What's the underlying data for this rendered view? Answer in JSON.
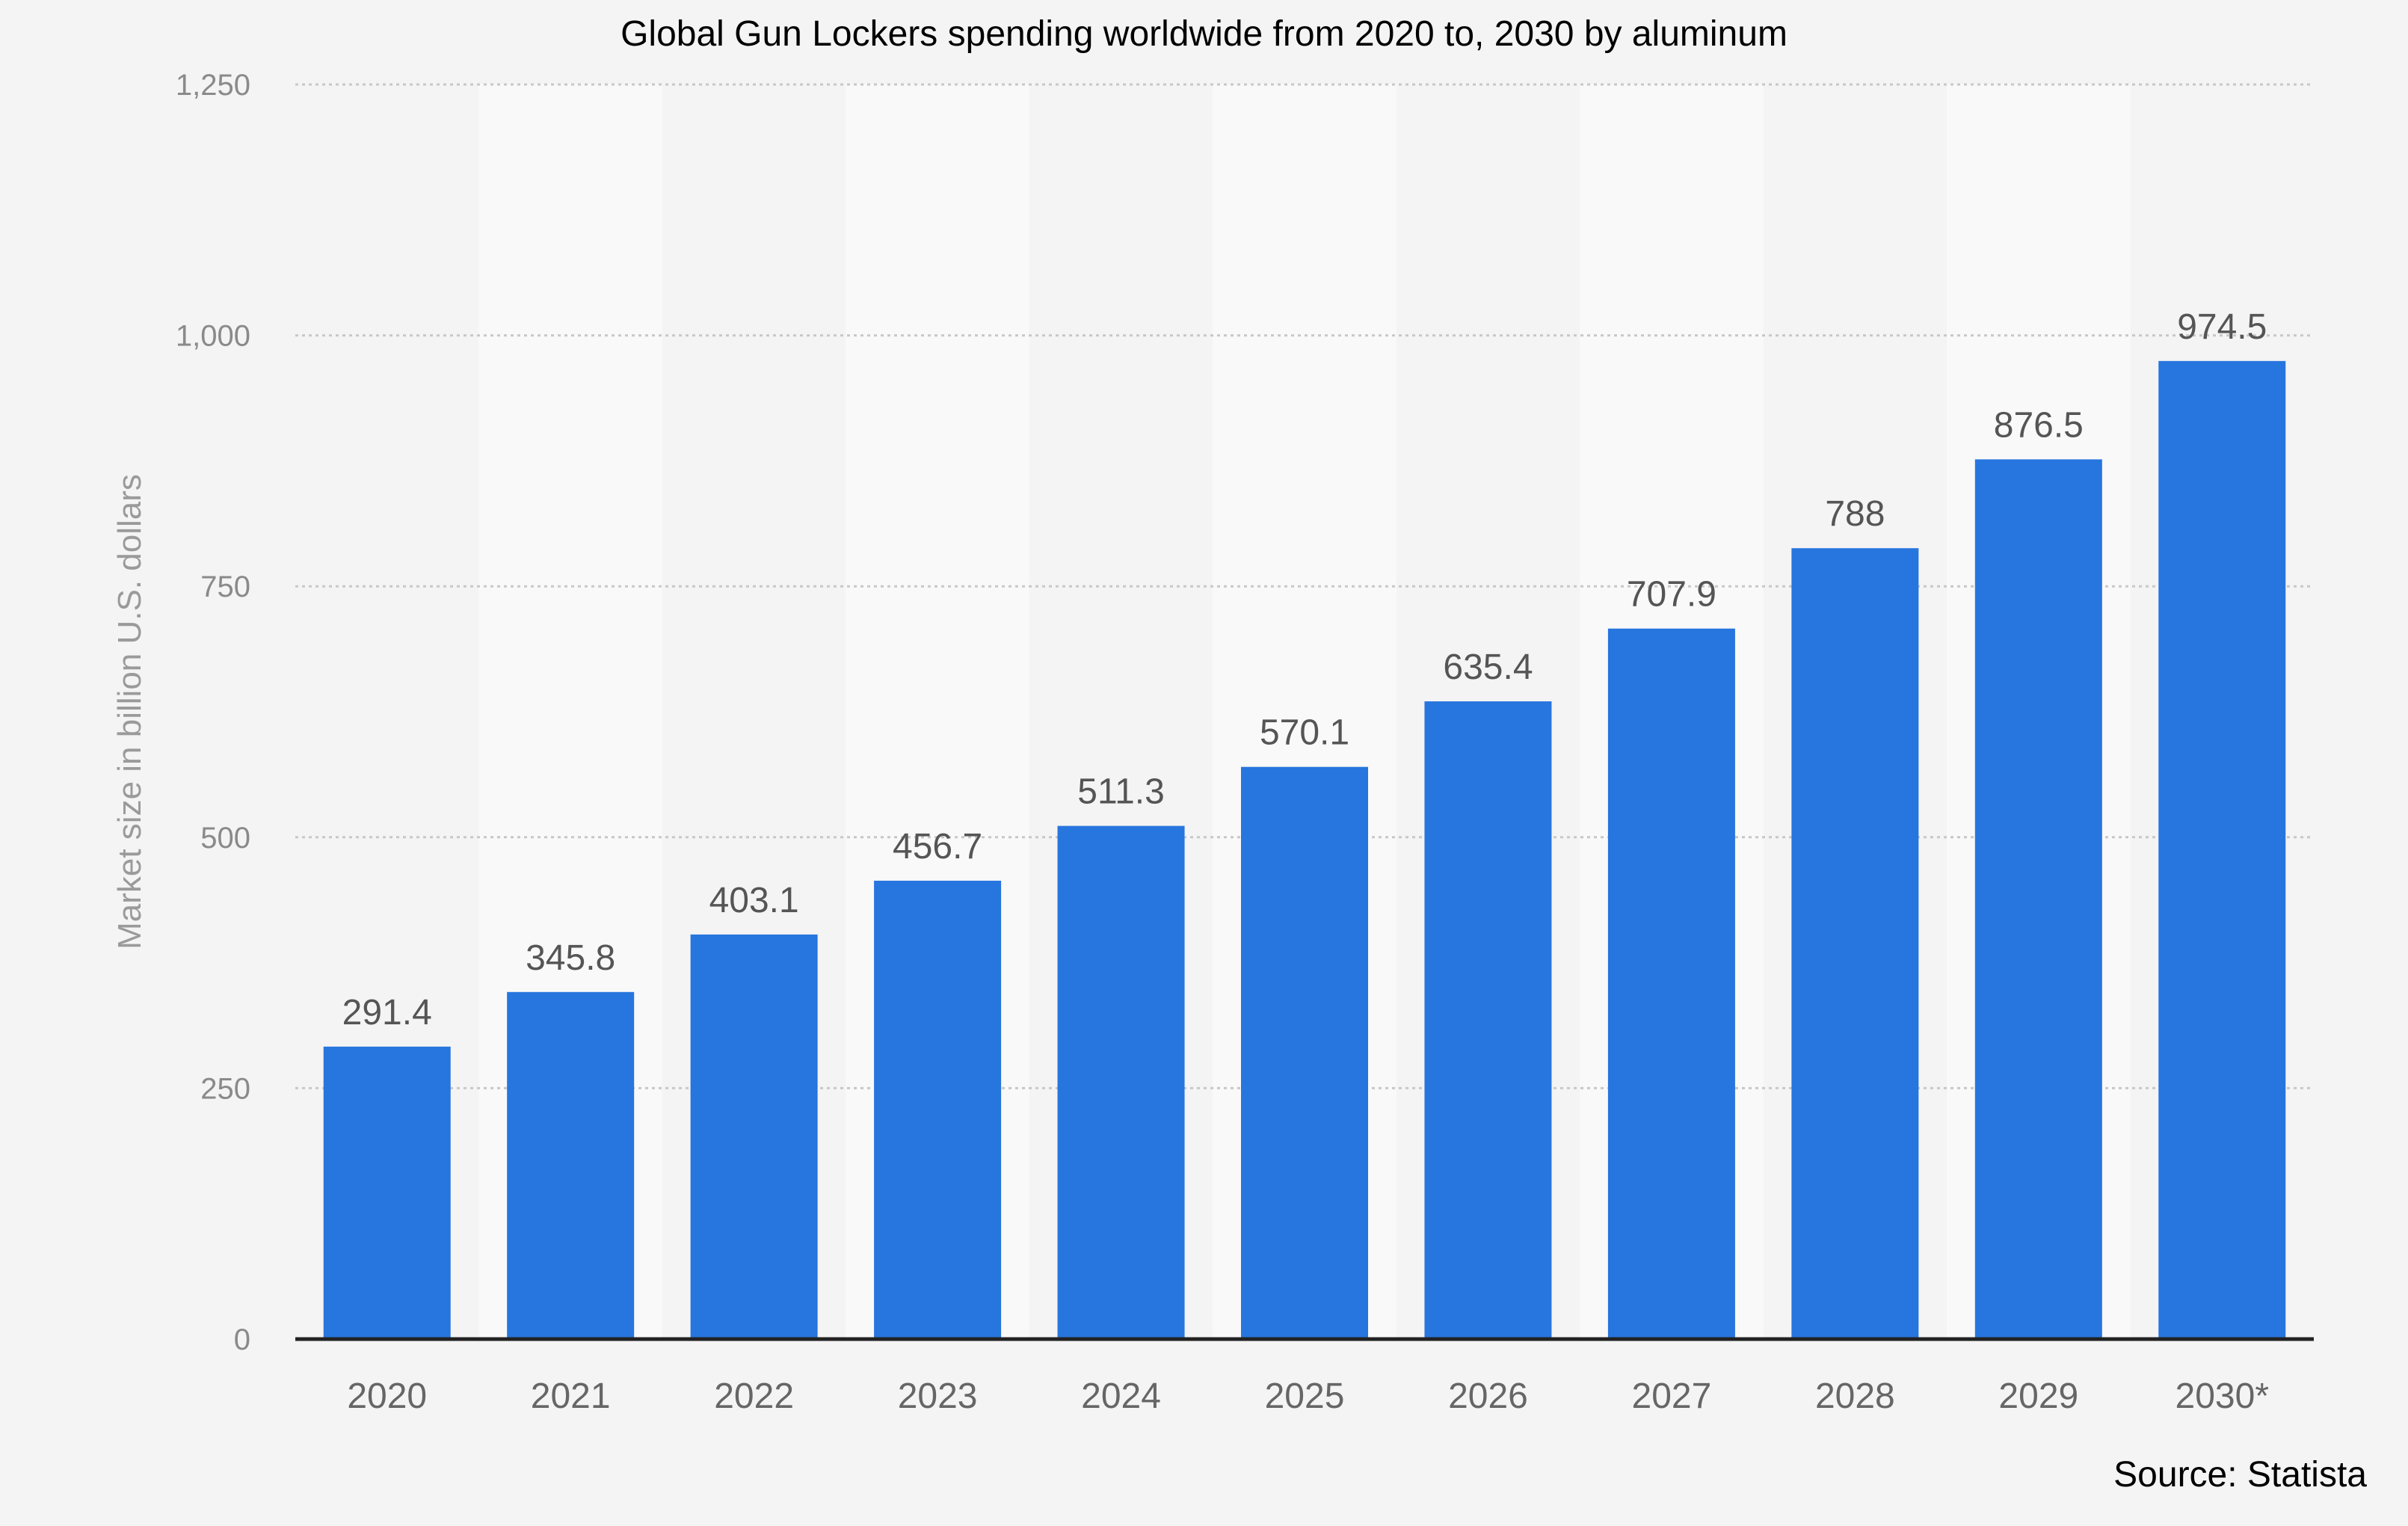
{
  "chart_data": {
    "type": "bar",
    "title": "Global Gun Lockers spending worldwide from 2020 to, 2030 by aluminum",
    "xlabel": "",
    "ylabel": "Market size in billion U.S. dollars",
    "categories": [
      "2020",
      "2021",
      "2022",
      "2023",
      "2024",
      "2025",
      "2026",
      "2027",
      "2028",
      "2029",
      "2030*"
    ],
    "values": [
      291.4,
      345.8,
      403.1,
      456.7,
      511.3,
      570.1,
      635.4,
      707.9,
      788,
      876.5,
      974.5
    ],
    "value_labels": [
      "291.4",
      "345.8",
      "403.1",
      "456.7",
      "511.3",
      "570.1",
      "635.4",
      "707.9",
      "788",
      "876.5",
      "974.5"
    ],
    "ylim": [
      0,
      1250
    ],
    "yticks": [
      0,
      250,
      500,
      750,
      1000,
      1250
    ],
    "ytick_labels": [
      "0",
      "250",
      "500",
      "750",
      "1,000",
      "1,250"
    ],
    "grid": true,
    "legend": "none",
    "colors": {
      "bar": "#2775de",
      "background": "#f4f4f4",
      "band": "#f9f9f9",
      "grid": "#c8c8c8",
      "axis": "#222222"
    }
  },
  "source_note": "Source: Statista"
}
